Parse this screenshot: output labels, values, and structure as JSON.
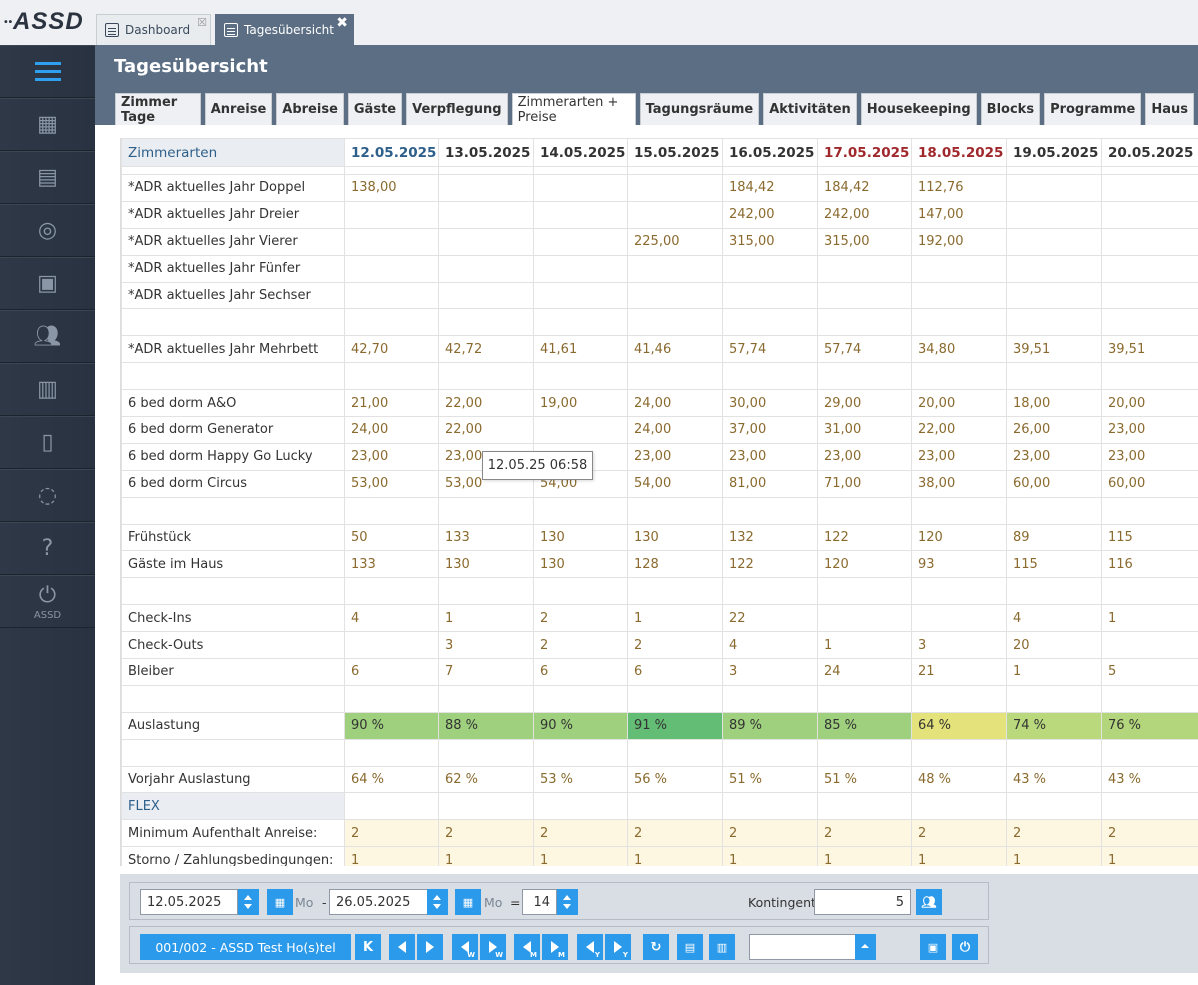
{
  "app": {
    "logo": "ASSD",
    "logo_dots": "••"
  },
  "doc_tabs": [
    {
      "label": "Dashboard",
      "close": "☒"
    },
    {
      "label": "Tagesübersicht",
      "close": "✖"
    }
  ],
  "sidebar": {
    "items": [
      {
        "icon": "menu-icon"
      },
      {
        "icon": "calendar-icon"
      },
      {
        "icon": "calendar-list-icon"
      },
      {
        "icon": "lifebuoy-icon"
      },
      {
        "icon": "suitcase-icon"
      },
      {
        "icon": "users-icon"
      },
      {
        "icon": "cash-register-icon"
      },
      {
        "icon": "document-bulb-icon"
      },
      {
        "icon": "chat-icon"
      },
      {
        "icon": "help-icon"
      },
      {
        "icon": "power-icon",
        "label": "ASSD"
      }
    ]
  },
  "header": {
    "title": "Tagesübersicht",
    "tabs": [
      "Zimmer Tage",
      "Anreise",
      "Abreise",
      "Gäste",
      "Verpflegung",
      "Zimmerarten + Preise",
      "Tagungsräume",
      "Aktivitäten",
      "Housekeeping",
      "Blocks",
      "Programme",
      "Haus"
    ],
    "active_tab": "Zimmerarten + Preise"
  },
  "grid": {
    "first_header": "Zimmerarten",
    "dates": [
      "12.05.2025",
      "13.05.2025",
      "14.05.2025",
      "15.05.2025",
      "16.05.2025",
      "17.05.2025",
      "18.05.2025",
      "19.05.2025",
      "20.05.2025"
    ],
    "rows": [
      {
        "label": "*ADR aktuelles Jahr Doppel",
        "values": [
          "138,00",
          "",
          "",
          "",
          "184,42",
          "184,42",
          "112,76",
          "",
          ""
        ]
      },
      {
        "label": "*ADR aktuelles Jahr Dreier",
        "values": [
          "",
          "",
          "",
          "",
          "242,00",
          "242,00",
          "147,00",
          "",
          ""
        ]
      },
      {
        "label": "*ADR aktuelles Jahr Vierer",
        "values": [
          "",
          "",
          "",
          "225,00",
          "315,00",
          "315,00",
          "192,00",
          "",
          ""
        ]
      },
      {
        "label": "*ADR aktuelles Jahr Fünfer",
        "values": [
          "",
          "",
          "",
          "",
          "",
          "",
          "",
          "",
          ""
        ]
      },
      {
        "label": "*ADR aktuelles Jahr Sechser",
        "values": [
          "",
          "",
          "",
          "",
          "",
          "",
          "",
          "",
          ""
        ]
      },
      {
        "label": "",
        "values": [
          "",
          "",
          "",
          "",
          "",
          "",
          "",
          "",
          ""
        ]
      },
      {
        "label": "*ADR aktuelles Jahr Mehrbett",
        "values": [
          "42,70",
          "42,72",
          "41,61",
          "41,46",
          "57,74",
          "57,74",
          "34,80",
          "39,51",
          "39,51"
        ]
      },
      {
        "label": "",
        "values": [
          "",
          "",
          "",
          "",
          "",
          "",
          "",
          "",
          ""
        ]
      },
      {
        "label": "6 bed dorm A&O",
        "values": [
          "21,00",
          "22,00",
          "19,00",
          "24,00",
          "30,00",
          "29,00",
          "20,00",
          "18,00",
          "20,00"
        ]
      },
      {
        "label": "6 bed dorm Generator",
        "values": [
          "24,00",
          "22,00",
          "",
          "24,00",
          "37,00",
          "31,00",
          "22,00",
          "26,00",
          "23,00"
        ]
      },
      {
        "label": "6 bed dorm Happy Go Lucky",
        "values": [
          "23,00",
          "23,00",
          "",
          "23,00",
          "23,00",
          "23,00",
          "23,00",
          "23,00",
          "23,00"
        ]
      },
      {
        "label": "6 bed dorm Circus",
        "values": [
          "53,00",
          "53,00",
          "54,00",
          "54,00",
          "81,00",
          "71,00",
          "38,00",
          "60,00",
          "60,00"
        ]
      },
      {
        "label": "",
        "values": [
          "",
          "",
          "",
          "",
          "",
          "",
          "",
          "",
          ""
        ]
      },
      {
        "label": "Frühstück",
        "values": [
          "50",
          "133",
          "130",
          "130",
          "132",
          "122",
          "120",
          "89",
          "115"
        ]
      },
      {
        "label": "Gäste im Haus",
        "values": [
          "133",
          "130",
          "130",
          "128",
          "122",
          "120",
          "93",
          "115",
          "116"
        ]
      },
      {
        "label": "",
        "values": [
          "",
          "",
          "",
          "",
          "",
          "",
          "",
          "",
          ""
        ]
      },
      {
        "label": "Check-Ins",
        "values": [
          "4",
          "1",
          "2",
          "1",
          "22",
          "",
          "",
          "4",
          "1"
        ]
      },
      {
        "label": "Check-Outs",
        "values": [
          "",
          "3",
          "2",
          "2",
          "4",
          "1",
          "3",
          "20",
          ""
        ]
      },
      {
        "label": "Bleiber",
        "values": [
          "6",
          "7",
          "6",
          "6",
          "3",
          "24",
          "21",
          "1",
          "5"
        ]
      },
      {
        "label": "",
        "values": [
          "",
          "",
          "",
          "",
          "",
          "",
          "",
          "",
          ""
        ]
      },
      {
        "label": "Auslastung",
        "values": [
          "90 %",
          "88 %",
          "90 %",
          "91 %",
          "89 %",
          "85 %",
          "64 %",
          "74 %",
          "76 %"
        ],
        "occupancy": true
      },
      {
        "label": "",
        "values": [
          "",
          "",
          "",
          "",
          "",
          "",
          "",
          "",
          ""
        ]
      },
      {
        "label": "Vorjahr Auslastung",
        "values": [
          "64 %",
          "62 %",
          "53 %",
          "56 %",
          "51 %",
          "51 %",
          "48 %",
          "43 %",
          "43 %"
        ]
      },
      {
        "label": "FLEX",
        "values": [
          "",
          "",
          "",
          "",
          "",
          "",
          "",
          "",
          ""
        ],
        "flex": true
      },
      {
        "label": "Minimum Aufenthalt Anreise:",
        "values": [
          "2",
          "2",
          "2",
          "2",
          "2",
          "2",
          "2",
          "2",
          "2"
        ],
        "cream": true
      },
      {
        "label": "Storno / Zahlungsbedingungen:",
        "values": [
          "1",
          "1",
          "1",
          "1",
          "1",
          "1",
          "1",
          "1",
          "1"
        ],
        "cream": true
      }
    ],
    "occupancy_colors": [
      "#9fd07e",
      "#9fd07e",
      "#9fd07e",
      "#63bd74",
      "#9fd07e",
      "#9fd07e",
      "#e4e27a",
      "#b9d97c",
      "#b3d67c"
    ],
    "colors": {
      "today": "#2d5f8a",
      "weekend": "#a0282c",
      "value": "#8a6a2e"
    }
  },
  "tooltip": {
    "text": "12.05.25 06:58"
  },
  "footer": {
    "date_from": "12.05.2025",
    "weekday_from": "Mo",
    "separator": "-",
    "date_to": "26.05.2025",
    "weekday_to": "Mo",
    "equals": "=",
    "days": "14",
    "kontingent_label": "Kontingent:",
    "kontingent_value": "5",
    "hotel": "001/002 - ASSD Test Ho(s)tel",
    "k_label": "K",
    "sub_w": "W",
    "sub_m": "M",
    "sub_y": "Y",
    "dropdown_value": ""
  }
}
